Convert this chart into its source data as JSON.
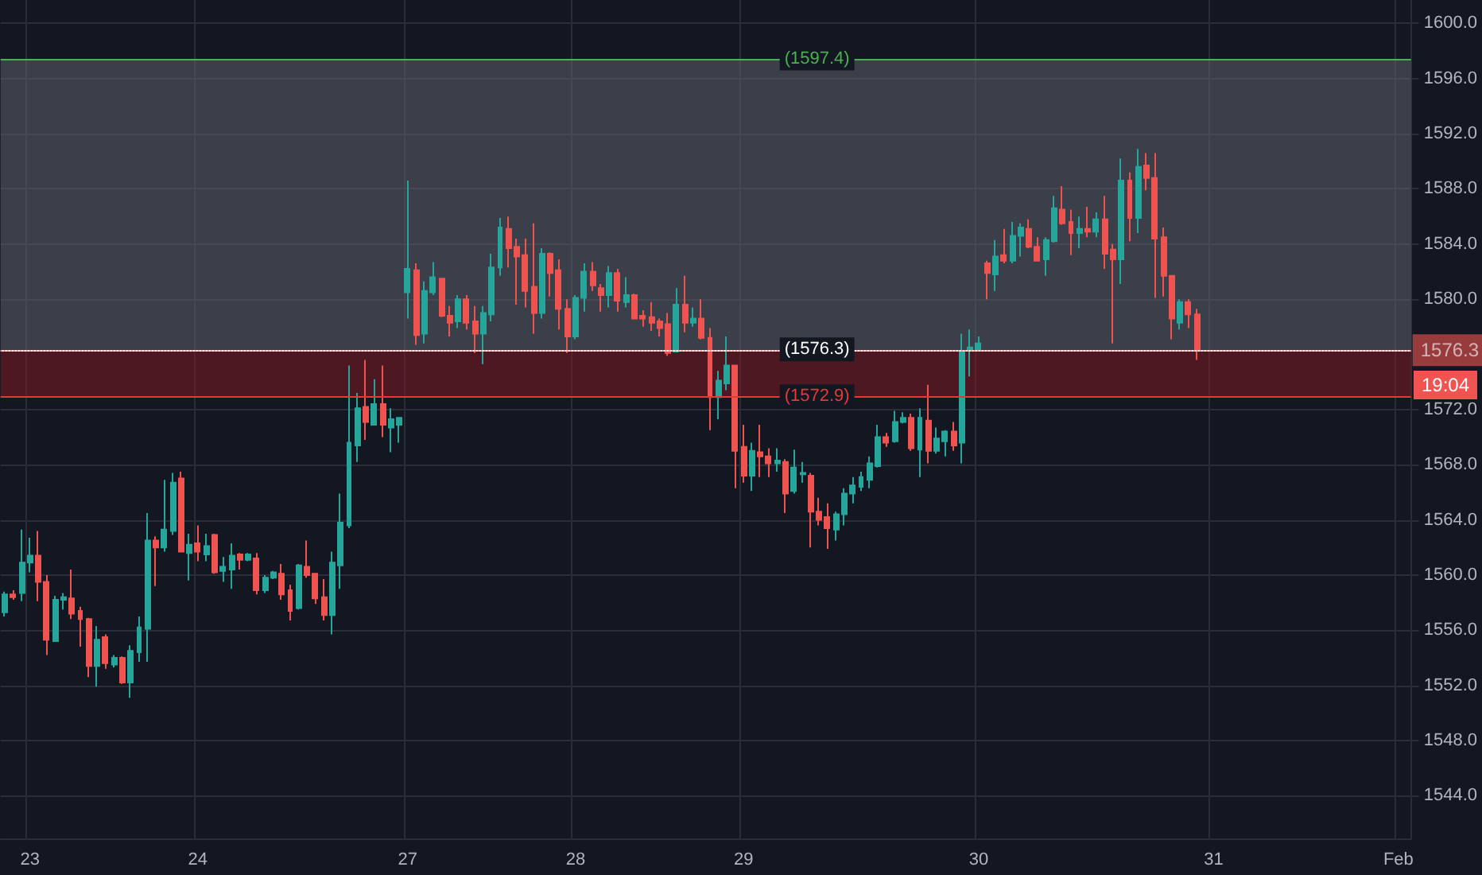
{
  "chart_data": {
    "type": "candlestick",
    "categories": [
      null,
      null,
      null,
      "23",
      null,
      null,
      null,
      null,
      null,
      null,
      null,
      null,
      null,
      null,
      null,
      null,
      null,
      null,
      null,
      null,
      null,
      null,
      null,
      "24",
      null,
      null,
      null,
      null,
      null,
      null,
      null,
      null,
      null,
      null,
      null,
      null,
      null,
      null,
      null,
      null,
      null,
      null,
      null,
      null,
      null,
      null,
      null,
      null,
      "27",
      null,
      null,
      null,
      null,
      null,
      null,
      null,
      null,
      null,
      null,
      null,
      null,
      null,
      null,
      null,
      null,
      null,
      null,
      null,
      "28",
      null,
      null,
      null,
      null,
      null,
      null,
      null,
      null,
      null,
      null,
      null,
      null,
      null,
      null,
      null,
      null,
      null,
      null,
      null,
      "29",
      null,
      null,
      null,
      null,
      null,
      null,
      null,
      null,
      null,
      null,
      null,
      null,
      null,
      null,
      null,
      null,
      null,
      null,
      null,
      null,
      null,
      null,
      null,
      null,
      null,
      null,
      null,
      "30",
      null,
      null,
      null,
      null,
      null,
      null,
      null,
      null,
      null,
      null,
      null,
      null,
      null,
      null,
      null,
      null,
      null,
      null,
      null,
      null,
      null,
      null,
      null,
      null,
      null,
      null,
      null,
      "31",
      null,
      null,
      null,
      null,
      null,
      null,
      null,
      null,
      null,
      null,
      null,
      null,
      null,
      null,
      null,
      null,
      null,
      null,
      null,
      null,
      null,
      "Feb",
      null
    ],
    "ohlc": [
      [
        1557.3,
        1558.8,
        1557.0,
        1558.6
      ],
      [
        1558.6,
        1558.9,
        1558.2,
        1558.4
      ],
      [
        1558.7,
        1563.3,
        1558.1,
        1560.9
      ],
      [
        1560.9,
        1562.7,
        1560.2,
        1561.4
      ],
      [
        1561.4,
        1563.2,
        1558.1,
        1559.5
      ],
      [
        1559.5,
        1560.0,
        1554.2,
        1555.3
      ],
      [
        1555.2,
        1558.5,
        1555.2,
        1558.2
      ],
      [
        1558.2,
        1558.7,
        1557.5,
        1558.4
      ],
      [
        1558.3,
        1560.4,
        1556.8,
        1557.2
      ],
      [
        1557.4,
        1557.7,
        1554.8,
        1556.8
      ],
      [
        1556.8,
        1556.9,
        1552.6,
        1553.4
      ],
      [
        1553.4,
        1556.3,
        1551.9,
        1555.3
      ],
      [
        1555.5,
        1555.7,
        1553.2,
        1553.6
      ],
      [
        1553.5,
        1554.2,
        1553.3,
        1554.0
      ],
      [
        1554.0,
        1554.1,
        1552.1,
        1552.2
      ],
      [
        1552.2,
        1554.9,
        1551.1,
        1554.5
      ],
      [
        1554.4,
        1557.0,
        1553.7,
        1556.2
      ],
      [
        1556.1,
        1564.5,
        1553.7,
        1562.5
      ],
      [
        1562.5,
        1562.8,
        1559.2,
        1562.0
      ],
      [
        1562.0,
        1566.9,
        1561.7,
        1563.3
      ],
      [
        1563.2,
        1567.4,
        1562.9,
        1566.7
      ],
      [
        1567.0,
        1567.5,
        1561.7,
        1561.7
      ],
      [
        1561.6,
        1563.0,
        1559.6,
        1562.2
      ],
      [
        1562.3,
        1563.6,
        1561.0,
        1561.7
      ],
      [
        1561.5,
        1563.0,
        1561.0,
        1562.1
      ],
      [
        1562.9,
        1563.0,
        1560.1,
        1560.2
      ],
      [
        1560.3,
        1561.3,
        1559.5,
        1560.6
      ],
      [
        1560.4,
        1562.3,
        1559.0,
        1561.4
      ],
      [
        1561.5,
        1561.6,
        1560.4,
        1561.1
      ],
      [
        1561.1,
        1561.6,
        1561.0,
        1561.5
      ],
      [
        1561.2,
        1561.6,
        1558.6,
        1558.9
      ],
      [
        1558.9,
        1560.0,
        1558.7,
        1559.8
      ],
      [
        1559.8,
        1560.3,
        1559.7,
        1560.2
      ],
      [
        1560.1,
        1560.8,
        1558.2,
        1558.6
      ],
      [
        1558.9,
        1559.3,
        1556.7,
        1557.4
      ],
      [
        1557.6,
        1560.8,
        1557.5,
        1560.7
      ],
      [
        1560.6,
        1562.5,
        1559.8,
        1560.0
      ],
      [
        1560.1,
        1560.1,
        1557.9,
        1558.3
      ],
      [
        1558.4,
        1559.7,
        1556.7,
        1557.1
      ],
      [
        1557.1,
        1561.7,
        1555.7,
        1560.9
      ],
      [
        1560.7,
        1565.9,
        1559.0,
        1563.8
      ],
      [
        1563.6,
        1575.2,
        1563.4,
        1569.6
      ],
      [
        1569.4,
        1573.2,
        1568.2,
        1572.1
      ],
      [
        1572.2,
        1575.6,
        1569.8,
        1571.1
      ],
      [
        1570.9,
        1574.2,
        1570.9,
        1572.4
      ],
      [
        1572.4,
        1575.2,
        1570.0,
        1570.9
      ],
      [
        1570.7,
        1572.1,
        1568.9,
        1571.3
      ],
      [
        1570.9,
        1571.4,
        1569.6,
        1571.4
      ],
      [
        1580.5,
        1588.6,
        1578.6,
        1582.2
      ],
      [
        1582.1,
        1582.6,
        1576.7,
        1577.4
      ],
      [
        1577.5,
        1581.3,
        1576.8,
        1580.6
      ],
      [
        1580.5,
        1582.7,
        1580.3,
        1581.6
      ],
      [
        1581.5,
        1581.5,
        1578.7,
        1578.8
      ],
      [
        1578.8,
        1579.5,
        1577.3,
        1578.3
      ],
      [
        1578.4,
        1580.3,
        1577.9,
        1580.0
      ],
      [
        1580.0,
        1580.3,
        1577.8,
        1578.3
      ],
      [
        1578.4,
        1579.5,
        1576.1,
        1577.5
      ],
      [
        1577.5,
        1579.5,
        1575.3,
        1579.0
      ],
      [
        1578.9,
        1583.3,
        1578.4,
        1582.3
      ],
      [
        1582.3,
        1585.9,
        1581.7,
        1585.2
      ],
      [
        1585.1,
        1586.0,
        1582.3,
        1583.7
      ],
      [
        1583.8,
        1584.4,
        1579.6,
        1583.1
      ],
      [
        1583.2,
        1584.4,
        1579.4,
        1580.6
      ],
      [
        1580.9,
        1585.5,
        1577.5,
        1579.0
      ],
      [
        1579.0,
        1583.7,
        1578.6,
        1583.3
      ],
      [
        1583.3,
        1583.4,
        1580.2,
        1581.9
      ],
      [
        1582.1,
        1582.9,
        1577.8,
        1579.3
      ],
      [
        1579.3,
        1580.0,
        1576.1,
        1577.3
      ],
      [
        1577.3,
        1580.3,
        1577.1,
        1580.1
      ],
      [
        1580.1,
        1582.6,
        1579.1,
        1582.0
      ],
      [
        1582.0,
        1582.7,
        1580.6,
        1581.0
      ],
      [
        1580.8,
        1581.1,
        1579.1,
        1580.3
      ],
      [
        1580.3,
        1582.4,
        1579.4,
        1581.9
      ],
      [
        1581.9,
        1582.2,
        1579.1,
        1579.9
      ],
      [
        1579.8,
        1581.6,
        1579.4,
        1580.3
      ],
      [
        1580.3,
        1580.4,
        1578.6,
        1578.6
      ],
      [
        1578.8,
        1579.2,
        1578.0,
        1578.6
      ],
      [
        1578.7,
        1579.8,
        1577.7,
        1578.3
      ],
      [
        1578.4,
        1578.6,
        1577.3,
        1577.9
      ],
      [
        1578.2,
        1579.0,
        1575.9,
        1576.1
      ],
      [
        1576.2,
        1580.8,
        1576.2,
        1579.6
      ],
      [
        1579.6,
        1581.7,
        1577.6,
        1578.3
      ],
      [
        1578.3,
        1579.4,
        1578.0,
        1578.6
      ],
      [
        1578.6,
        1580.0,
        1577.1,
        1577.2
      ],
      [
        1577.2,
        1577.9,
        1570.5,
        1572.9
      ],
      [
        1572.9,
        1574.8,
        1571.3,
        1574.1
      ],
      [
        1573.9,
        1577.3,
        1573.4,
        1575.2
      ],
      [
        1575.2,
        1575.2,
        1566.3,
        1569.0
      ],
      [
        1569.3,
        1570.9,
        1566.7,
        1567.2
      ],
      [
        1567.2,
        1569.6,
        1566.1,
        1569.0
      ],
      [
        1568.9,
        1570.9,
        1567.1,
        1568.6
      ],
      [
        1568.6,
        1569.2,
        1567.1,
        1568.1
      ],
      [
        1568.1,
        1569.2,
        1567.5,
        1568.3
      ],
      [
        1568.2,
        1568.4,
        1564.5,
        1565.9
      ],
      [
        1566.1,
        1569.1,
        1565.9,
        1567.8
      ],
      [
        1567.3,
        1568.2,
        1566.7,
        1567.4
      ],
      [
        1567.2,
        1567.4,
        1562.0,
        1564.6
      ],
      [
        1564.6,
        1565.6,
        1563.6,
        1564.0
      ],
      [
        1564.2,
        1565.2,
        1561.9,
        1563.4
      ],
      [
        1563.3,
        1564.6,
        1562.5,
        1564.4
      ],
      [
        1564.4,
        1566.3,
        1563.6,
        1565.9
      ],
      [
        1565.9,
        1567.1,
        1565.2,
        1566.5
      ],
      [
        1566.4,
        1567.5,
        1566.1,
        1567.1
      ],
      [
        1566.9,
        1568.6,
        1566.3,
        1568.1
      ],
      [
        1567.9,
        1570.9,
        1567.8,
        1570.0
      ],
      [
        1570.0,
        1570.3,
        1569.3,
        1569.6
      ],
      [
        1569.7,
        1571.9,
        1569.6,
        1571.1
      ],
      [
        1571.1,
        1571.8,
        1571.0,
        1571.4
      ],
      [
        1571.4,
        1571.7,
        1569.0,
        1569.2
      ],
      [
        1569.1,
        1572.1,
        1567.1,
        1571.4
      ],
      [
        1571.2,
        1573.8,
        1568.1,
        1569.0
      ],
      [
        1569.0,
        1570.7,
        1568.8,
        1569.9
      ],
      [
        1569.7,
        1570.5,
        1568.6,
        1570.4
      ],
      [
        1570.4,
        1571.1,
        1569.0,
        1569.4
      ],
      [
        1569.6,
        1577.5,
        1568.1,
        1576.2
      ],
      [
        1576.3,
        1577.8,
        1574.4,
        1576.5
      ],
      [
        1576.3,
        1577.3,
        1576.3,
        1576.8
      ],
      [
        1582.6,
        1582.8,
        1580.0,
        1581.9
      ],
      [
        1581.8,
        1584.3,
        1580.6,
        1583.1
      ],
      [
        1583.2,
        1585.1,
        1582.6,
        1582.8
      ],
      [
        1582.8,
        1585.6,
        1582.6,
        1584.6
      ],
      [
        1584.6,
        1585.5,
        1583.1,
        1585.2
      ],
      [
        1585.1,
        1585.8,
        1583.7,
        1583.8
      ],
      [
        1583.8,
        1584.5,
        1582.8,
        1582.8
      ],
      [
        1582.9,
        1584.5,
        1581.7,
        1584.3
      ],
      [
        1584.2,
        1587.5,
        1584.1,
        1586.6
      ],
      [
        1586.5,
        1588.2,
        1585.4,
        1585.5
      ],
      [
        1585.6,
        1586.5,
        1583.2,
        1584.8
      ],
      [
        1584.8,
        1586.0,
        1583.7,
        1585.1
      ],
      [
        1585.1,
        1586.7,
        1584.5,
        1584.9
      ],
      [
        1584.9,
        1586.3,
        1584.5,
        1585.8
      ],
      [
        1585.8,
        1587.5,
        1582.2,
        1583.3
      ],
      [
        1583.6,
        1584.0,
        1576.8,
        1582.9
      ],
      [
        1582.9,
        1590.2,
        1581.1,
        1588.6
      ],
      [
        1588.6,
        1589.2,
        1584.2,
        1585.9
      ],
      [
        1585.9,
        1590.9,
        1584.8,
        1589.6
      ],
      [
        1589.7,
        1590.6,
        1587.9,
        1588.8
      ],
      [
        1588.8,
        1590.6,
        1580.1,
        1584.4
      ],
      [
        1584.5,
        1585.2,
        1580.2,
        1581.7
      ],
      [
        1581.7,
        1581.7,
        1577.1,
        1578.6
      ],
      [
        1578.3,
        1580.0,
        1577.8,
        1579.8
      ],
      [
        1579.8,
        1580.0,
        1577.9,
        1578.9
      ],
      [
        1578.9,
        1579.3,
        1575.6,
        1576.3
      ],
      null,
      null,
      null,
      null,
      null,
      null,
      null,
      null,
      null,
      null,
      null,
      null,
      null,
      null,
      null,
      null,
      null,
      null,
      null,
      null,
      null,
      null,
      null,
      null,
      null
    ],
    "colors": [
      "#26a69a",
      "#ef5350",
      "#26a69a",
      "#26a69a",
      "#ef5350",
      "#ef5350",
      "#26a69a",
      "#26a69a",
      "#ef5350",
      "#ef5350",
      "#ef5350",
      "#26a69a",
      "#ef5350",
      "#26a69a",
      "#ef5350",
      "#26a69a",
      "#26a69a",
      "#26a69a",
      "#ef5350",
      "#26a69a",
      "#26a69a",
      "#ef5350",
      "#26a69a",
      "#ef5350",
      "#26a69a",
      "#ef5350",
      "#26a69a",
      "#26a69a",
      "#ef5350",
      "#26a69a",
      "#ef5350",
      "#26a69a",
      "#26a69a",
      "#ef5350",
      "#ef5350",
      "#26a69a",
      "#ef5350",
      "#ef5350",
      "#ef5350",
      "#26a69a",
      "#26a69a",
      "#26a69a",
      "#26a69a",
      "#ef5350",
      "#26a69a",
      "#ef5350",
      "#26a69a",
      "#26a69a",
      "#26a69a",
      "#ef5350",
      "#26a69a",
      "#26a69a",
      "#ef5350",
      "#ef5350",
      "#26a69a",
      "#ef5350",
      "#ef5350",
      "#26a69a",
      "#26a69a",
      "#26a69a",
      "#ef5350",
      "#ef5350",
      "#ef5350",
      "#ef5350",
      "#26a69a",
      "#ef5350",
      "#ef5350",
      "#ef5350",
      "#26a69a",
      "#26a69a",
      "#ef5350",
      "#ef5350",
      "#26a69a",
      "#ef5350",
      "#26a69a",
      "#ef5350",
      "#ef5350",
      "#ef5350",
      "#ef5350",
      "#ef5350",
      "#26a69a",
      "#ef5350",
      "#26a69a",
      "#ef5350",
      "#ef5350",
      "#26a69a",
      "#26a69a",
      "#ef5350",
      "#ef5350",
      "#26a69a",
      "#ef5350",
      "#ef5350",
      "#26a69a",
      "#ef5350",
      "#26a69a",
      "#26a69a",
      "#ef5350",
      "#ef5350",
      "#ef5350",
      "#26a69a",
      "#26a69a",
      "#26a69a",
      "#26a69a",
      "#26a69a",
      "#26a69a",
      "#ef5350",
      "#26a69a",
      "#26a69a",
      "#ef5350",
      "#26a69a",
      "#ef5350",
      "#26a69a",
      "#26a69a",
      "#ef5350",
      "#26a69a",
      "#26a69a",
      "#26a69a",
      "#ef5350",
      "#26a69a",
      "#ef5350",
      "#26a69a",
      "#26a69a",
      "#ef5350",
      "#ef5350",
      "#26a69a",
      "#26a69a",
      "#ef5350",
      "#ef5350",
      "#26a69a",
      "#ef5350",
      "#26a69a",
      "#ef5350",
      "#ef5350",
      "#26a69a",
      "#ef5350",
      "#26a69a",
      "#ef5350",
      "#ef5350",
      "#ef5350",
      "#ef5350",
      "#26a69a",
      "#ef5350",
      "#ef5350",
      null,
      null,
      null,
      null,
      null,
      null,
      null,
      null,
      null,
      null,
      null,
      null,
      null,
      null,
      null,
      null,
      null,
      null,
      null,
      null,
      null,
      null,
      null,
      null,
      null
    ],
    "ylim": [
      1540.9,
      1601.7
    ],
    "yticks": [
      {
        "value": 1544,
        "label": "1544.0"
      },
      {
        "value": 1548,
        "label": "1548.0"
      },
      {
        "value": 1552,
        "label": "1552.0"
      },
      {
        "value": 1556,
        "label": "1556.0"
      },
      {
        "value": 1560,
        "label": "1560.0"
      },
      {
        "value": 1564,
        "label": "1564.0"
      },
      {
        "value": 1568,
        "label": "1568.0"
      },
      {
        "value": 1572,
        "label": "1572.0"
      },
      {
        "value": 1580,
        "label": "1580.0"
      },
      {
        "value": 1584,
        "label": "1584.0"
      },
      {
        "value": 1588,
        "label": "1588.0"
      },
      {
        "value": 1592,
        "label": "1592.0"
      },
      {
        "value": 1596,
        "label": "1596.0"
      },
      {
        "value": 1600,
        "label": "1600.0"
      }
    ],
    "grid": true,
    "bands": [
      {
        "axis": "y",
        "from": 1576.3,
        "to": 1597.4,
        "color": "#5d606b"
      },
      {
        "axis": "y",
        "from": 1572.9,
        "to": 1576.3,
        "color": "#801922"
      }
    ],
    "ref_lines": [
      {
        "axis": "y",
        "value": 1597.4,
        "label": "(1597.4)",
        "color": "#4caf50",
        "line_style": "solid"
      },
      {
        "axis": "y",
        "value": 1576.3,
        "label": "(1576.3)",
        "color": "#ffffff",
        "line_style": "solid"
      },
      {
        "axis": "y",
        "value": 1572.9,
        "label": "(1572.9)",
        "color": "#e53935",
        "line_style": "solid"
      },
      {
        "axis": "y",
        "value": 1576.3,
        "label": "1576.3",
        "color": "#f05350",
        "line_style": "dotted"
      }
    ],
    "annotations": [
      "19:04"
    ]
  }
}
